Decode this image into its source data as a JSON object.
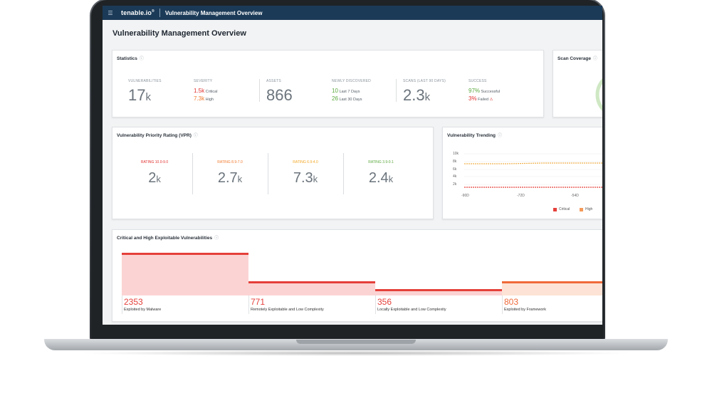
{
  "app": {
    "brand": "tenable.io",
    "brand_mark": "®",
    "title": "Vulnerability Management Overview",
    "page_title": "Vulnerability Management Overview"
  },
  "statistics": {
    "title": "Statistics",
    "vulnerabilities": {
      "label": "VULNERABILITIES",
      "value": "17",
      "unit": "k"
    },
    "severity": {
      "label": "SEVERITY",
      "critical": {
        "value": "1.5k",
        "text": "Critical"
      },
      "high": {
        "value": "7.3k",
        "text": "High"
      }
    },
    "assets": {
      "label": "ASSETS",
      "value": "866"
    },
    "newly_discovered": {
      "label": "NEWLY DISCOVERED",
      "last7": {
        "value": "10",
        "text": "Last 7 Days"
      },
      "last30": {
        "value": "26",
        "text": "Last 30 Days"
      }
    },
    "scans": {
      "label": "SCANS (LAST 90 DAYS)",
      "value": "2.3",
      "unit": "k"
    },
    "success": {
      "label": "SUCCESS",
      "successful": {
        "value": "97%",
        "text": "Successful"
      },
      "failed": {
        "value": "3%",
        "text": "Failed"
      }
    }
  },
  "scan_coverage": {
    "title": "Scan Coverage"
  },
  "vpr": {
    "title": "Vulnerability Priority Rating (VPR)",
    "ratings": [
      {
        "label": "RATING 10.0-9.0",
        "value": "2",
        "unit": "k",
        "color": "#e0312f"
      },
      {
        "label": "RATING 8.9-7.0",
        "value": "2.7",
        "unit": "k",
        "color": "#f07a2d"
      },
      {
        "label": "RATING 6.9-4.0",
        "value": "7.3",
        "unit": "k",
        "color": "#f2a623"
      },
      {
        "label": "RATING 3.9-0.1",
        "value": "2.4",
        "unit": "k",
        "color": "#5aa83c"
      }
    ]
  },
  "trending": {
    "title": "Vulnerability Trending",
    "y_ticks": [
      "10k",
      "8k",
      "6k",
      "4k",
      "2k"
    ],
    "x_ticks": [
      "-90D",
      "-72D",
      "-54D"
    ],
    "legend": [
      {
        "name": "Critical",
        "color": "#e5403b"
      },
      {
        "name": "High",
        "color": "#f49a5a"
      }
    ],
    "colors": {
      "critical": "#e5403b",
      "high": "#f0b04a"
    }
  },
  "exploitable": {
    "title": "Critical and High Exploitable Vulnerabilities",
    "items": [
      {
        "value": "2353",
        "label": "Exploited by Malware",
        "color": "#e5403b",
        "fill": "#fbd3d3"
      },
      {
        "value": "771",
        "label": "Remotely Exploitable and Low Complexity",
        "color": "#e5403b",
        "fill": "#fbd3d3"
      },
      {
        "value": "356",
        "label": "Locally Exploitable and Low Complexity",
        "color": "#e5403b",
        "fill": "#fbd3d3"
      },
      {
        "value": "803",
        "label": "Exploited by Framework",
        "color": "#ef6a3a",
        "fill": "#fde3d6"
      }
    ]
  }
}
